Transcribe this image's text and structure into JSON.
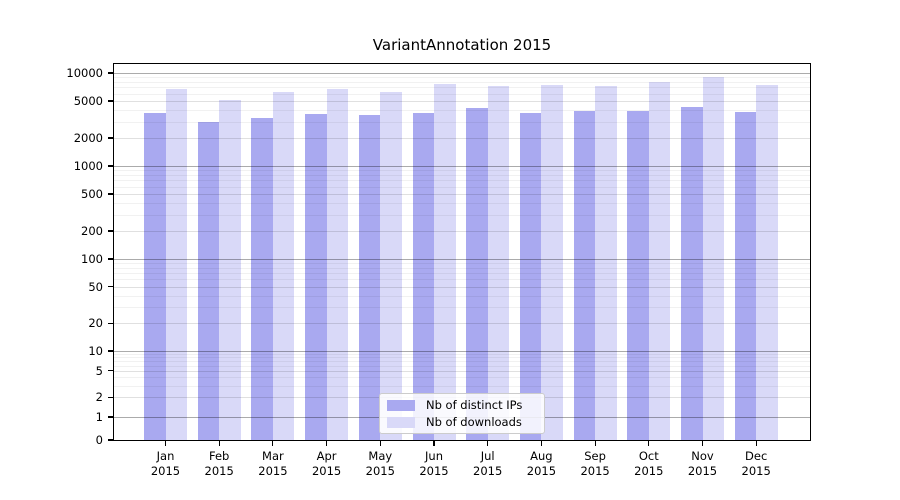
{
  "chart_data": {
    "type": "bar",
    "title": "VariantAnnotation 2015",
    "categories": [
      "Jan",
      "Feb",
      "Mar",
      "Apr",
      "May",
      "Jun",
      "Jul",
      "Aug",
      "Sep",
      "Oct",
      "Nov",
      "Dec"
    ],
    "category_year": "2015",
    "series": [
      {
        "name": "Nb of distinct IPs",
        "color": "#a9a9f0",
        "values": [
          3730,
          2990,
          3320,
          3640,
          3580,
          3760,
          4260,
          3760,
          3860,
          3860,
          4290,
          3830
        ]
      },
      {
        "name": "Nb of downloads",
        "color": "#d9d9f8",
        "values": [
          6800,
          5190,
          6280,
          6800,
          6220,
          7700,
          7340,
          7500,
          7210,
          7950,
          9000,
          7400
        ]
      }
    ],
    "y_axis": {
      "scale": "symlog",
      "ticks": [
        0,
        1,
        2,
        5,
        10,
        20,
        50,
        100,
        200,
        500,
        1000,
        2000,
        5000,
        10000
      ],
      "range": [
        0,
        12000
      ]
    },
    "x_axis": {
      "label": "",
      "tick_line2": "2015"
    },
    "grid": "on",
    "legend": {
      "position": "lower-center"
    },
    "colors": {
      "background": "#ffffff",
      "axis": "#000000"
    }
  }
}
